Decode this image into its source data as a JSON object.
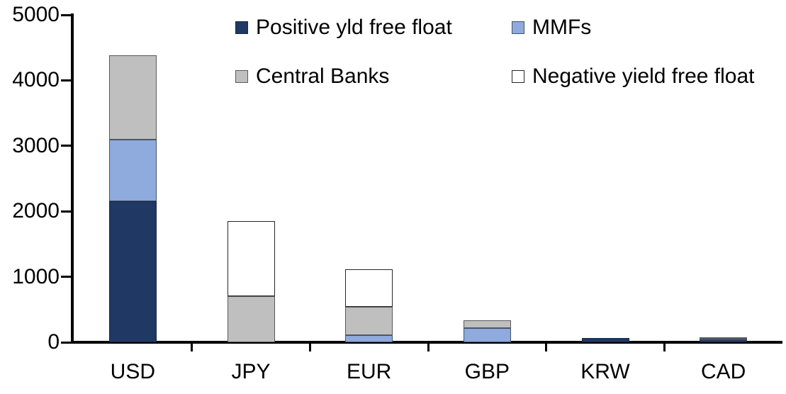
{
  "chart_data": {
    "type": "bar",
    "stacked": true,
    "title": "",
    "xlabel": "",
    "ylabel": "",
    "categories": [
      "USD",
      "JPY",
      "EUR",
      "GBP",
      "KRW",
      "CAD"
    ],
    "series": [
      {
        "name": "Positive yld free float",
        "color": "#1f3864",
        "border": "#17293f",
        "values": [
          2150,
          0,
          0,
          0,
          60,
          40
        ]
      },
      {
        "name": "MMFs",
        "color": "#8faadc",
        "border": "#44546a",
        "values": [
          950,
          0,
          110,
          220,
          0,
          10
        ]
      },
      {
        "name": "Central Banks",
        "color": "#bfbfbf",
        "border": "#595959",
        "values": [
          1280,
          700,
          435,
          120,
          0,
          30
        ]
      },
      {
        "name": "Negative yield free float",
        "color": "#ffffff",
        "border": "#262626",
        "values": [
          0,
          1150,
          575,
          0,
          0,
          0
        ]
      }
    ],
    "totals": [
      4380,
      1850,
      1120,
      340,
      60,
      80
    ],
    "ylim": [
      0,
      5000
    ],
    "ytick_step": 1000,
    "ytick_labels": [
      "0",
      "1000",
      "2000",
      "3000",
      "4000",
      "5000"
    ],
    "grid": false,
    "legend_position": "top-inside",
    "legend_order": [
      "Positive yld free float",
      "MMFs",
      "Central Banks",
      "Negative yield free float"
    ],
    "colors": {
      "axis": "#000000",
      "text": "#000000",
      "background": "#ffffff"
    }
  }
}
